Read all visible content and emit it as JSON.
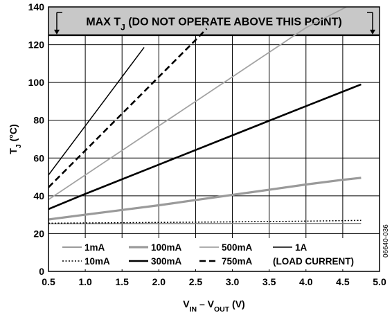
{
  "chart_data": {
    "type": "line",
    "xlabel": "V_IN – V_OUT (V)",
    "ylabel": "T_J (°C)",
    "xlim": [
      0.5,
      5.0
    ],
    "ylim": [
      0,
      140
    ],
    "x_ticks": [
      "0.5",
      "1.0",
      "1.5",
      "2.0",
      "2.5",
      "3.0",
      "3.5",
      "4.0",
      "4.5",
      "5.0"
    ],
    "y_ticks": [
      "0",
      "20",
      "40",
      "60",
      "80",
      "100",
      "120",
      "140"
    ],
    "grid": true,
    "legend_position": "bottom",
    "legend_footer": "(LOAD CURRENT)",
    "annotation": {
      "text": "MAX T_J (DO NOT OPERATE ABOVE THIS POINT)",
      "y_from": 125,
      "y_to": 140
    },
    "figure_id": "06640-036",
    "series": [
      {
        "name": "1mA",
        "color": "#7a7a7a",
        "style": "solid",
        "width": 1.4,
        "x": [
          0.5,
          4.75
        ],
        "y": [
          25.2,
          25.4
        ]
      },
      {
        "name": "10mA",
        "color": "#000000",
        "style": "dotted",
        "width": 1.5,
        "x": [
          0.5,
          2.0,
          3.0,
          4.0,
          4.75
        ],
        "y": [
          25.5,
          25.9,
          26.2,
          26.6,
          27.0
        ]
      },
      {
        "name": "100mA",
        "color": "#9a9a9a",
        "style": "solid",
        "width": 3.2,
        "x": [
          0.5,
          1.0,
          1.5,
          2.0,
          2.5,
          3.0,
          3.5,
          4.0,
          4.5,
          4.75
        ],
        "y": [
          27.5,
          30,
          32.5,
          35,
          37.8,
          40.5,
          43.2,
          46,
          48.5,
          49.5
        ]
      },
      {
        "name": "300mA",
        "color": "#000000",
        "style": "solid",
        "width": 2.6,
        "x": [
          0.5,
          1.0,
          2.0,
          3.0,
          4.0,
          4.75
        ],
        "y": [
          33,
          41,
          56.5,
          72,
          87.5,
          99
        ]
      },
      {
        "name": "500mA",
        "color": "#a3a3a3",
        "style": "solid",
        "width": 1.8,
        "x": [
          0.5,
          1.0,
          2.0,
          3.0,
          4.0,
          4.55
        ],
        "y": [
          38,
          51,
          77,
          103,
          129,
          140
        ]
      },
      {
        "name": "750mA",
        "color": "#000000",
        "style": "dashed",
        "width": 2.6,
        "x": [
          0.5,
          1.0,
          1.5,
          2.0,
          2.5,
          2.65
        ],
        "y": [
          44.5,
          64,
          83.5,
          103,
          122.5,
          128.5
        ]
      },
      {
        "name": "1A",
        "color": "#000000",
        "style": "solid",
        "width": 1.5,
        "x": [
          0.5,
          1.0,
          1.5,
          1.8
        ],
        "y": [
          51,
          77,
          103,
          118.6
        ]
      }
    ],
    "legend_layout": [
      [
        "1mA",
        "100mA",
        "500mA",
        "1A"
      ],
      [
        "10mA",
        "300mA",
        "750mA"
      ]
    ]
  }
}
